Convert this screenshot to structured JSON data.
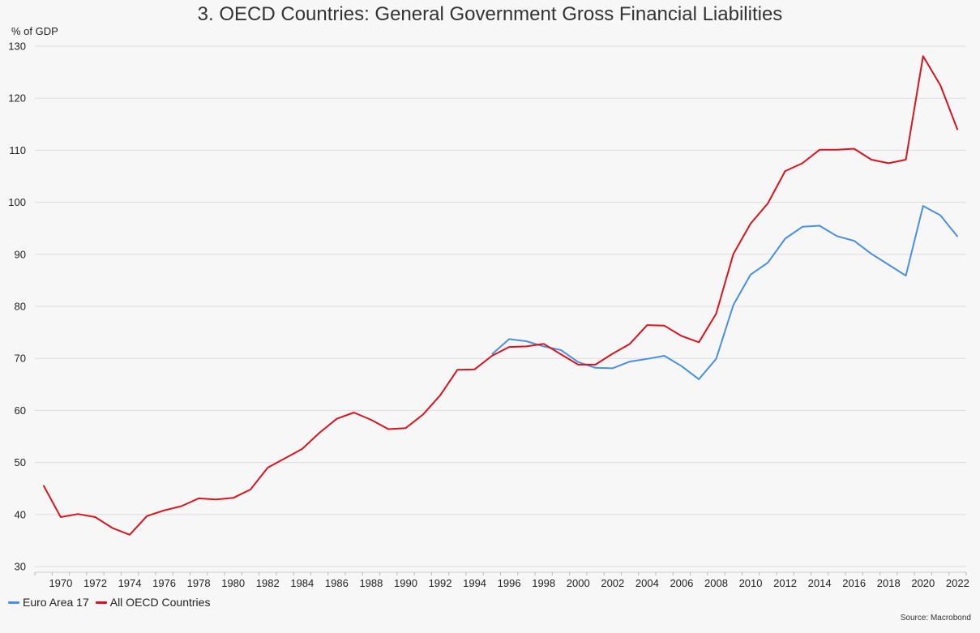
{
  "header": {
    "title": "3. OECD Countries: General Government Gross Financial Liabilities",
    "unit_label": "% of GDP"
  },
  "legend": {
    "items": [
      {
        "label": "Euro Area 17",
        "color": "#4a90e2"
      },
      {
        "label": "All OECD Countries",
        "color": "#d9141e"
      }
    ]
  },
  "footer": {
    "source": "Source: Macrobond"
  },
  "chart_data": {
    "type": "line",
    "title": "3. OECD Countries: General Government Gross Financial Liabilities",
    "ylabel": "% of GDP",
    "xlabel": "",
    "ylim": [
      30,
      130
    ],
    "yticks": [
      30,
      40,
      50,
      60,
      70,
      80,
      90,
      100,
      110,
      120,
      130
    ],
    "xlim": [
      1969,
      2023
    ],
    "xticks": [
      1970,
      1972,
      1974,
      1976,
      1978,
      1980,
      1982,
      1984,
      1986,
      1988,
      1990,
      1992,
      1994,
      1996,
      1998,
      2000,
      2002,
      2004,
      2006,
      2008,
      2010,
      2012,
      2014,
      2016,
      2018,
      2020,
      2022
    ],
    "grid": true,
    "legend_position": "bottom-left",
    "series": [
      {
        "name": "All OECD Countries",
        "color": "#d9141e",
        "points": [
          [
            1969.5,
            45.6
          ],
          [
            1970.5,
            39.5
          ],
          [
            1971.5,
            40.1
          ],
          [
            1972.5,
            39.5
          ],
          [
            1973.5,
            37.4
          ],
          [
            1974.5,
            36.1
          ],
          [
            1975.5,
            39.7
          ],
          [
            1976.5,
            40.8
          ],
          [
            1977.5,
            41.6
          ],
          [
            1978.5,
            43.1
          ],
          [
            1979.5,
            42.9
          ],
          [
            1980.5,
            43.2
          ],
          [
            1981.5,
            44.8
          ],
          [
            1982.5,
            49.0
          ],
          [
            1983.5,
            50.8
          ],
          [
            1984.5,
            52.6
          ],
          [
            1985.5,
            55.7
          ],
          [
            1986.5,
            58.4
          ],
          [
            1987.5,
            59.6
          ],
          [
            1988.5,
            58.2
          ],
          [
            1989.5,
            56.4
          ],
          [
            1990.5,
            56.6
          ],
          [
            1991.5,
            59.2
          ],
          [
            1992.5,
            62.9
          ],
          [
            1993.5,
            67.8
          ],
          [
            1994.5,
            67.9
          ],
          [
            1995.5,
            70.5
          ],
          [
            1996.5,
            72.2
          ],
          [
            1997.5,
            72.3
          ],
          [
            1998.5,
            72.8
          ],
          [
            1999.5,
            70.8
          ],
          [
            2000.5,
            68.8
          ],
          [
            2001.5,
            68.8
          ],
          [
            2002.5,
            70.9
          ],
          [
            2003.5,
            72.8
          ],
          [
            2004.5,
            76.4
          ],
          [
            2005.5,
            76.3
          ],
          [
            2006.5,
            74.3
          ],
          [
            2007.5,
            73.1
          ],
          [
            2008.5,
            78.6
          ],
          [
            2009.5,
            90.1
          ],
          [
            2010.5,
            95.9
          ],
          [
            2011.5,
            99.8
          ],
          [
            2012.5,
            106.0
          ],
          [
            2013.5,
            107.5
          ],
          [
            2014.5,
            110.1
          ],
          [
            2015.5,
            110.1
          ],
          [
            2016.5,
            110.3
          ],
          [
            2017.5,
            108.2
          ],
          [
            2018.5,
            107.5
          ],
          [
            2019.5,
            108.2
          ],
          [
            2020.5,
            128.1
          ],
          [
            2021.5,
            122.5
          ],
          [
            2022.5,
            113.9
          ]
        ]
      },
      {
        "name": "Euro Area 17",
        "color": "#4a90e2",
        "points": [
          [
            1995.5,
            70.8
          ],
          [
            1996.5,
            73.7
          ],
          [
            1997.5,
            73.3
          ],
          [
            1998.5,
            72.3
          ],
          [
            1999.5,
            71.6
          ],
          [
            2000.5,
            69.3
          ],
          [
            2001.5,
            68.2
          ],
          [
            2002.5,
            68.1
          ],
          [
            2003.5,
            69.4
          ],
          [
            2004.5,
            69.9
          ],
          [
            2005.5,
            70.5
          ],
          [
            2006.5,
            68.5
          ],
          [
            2007.5,
            66.0
          ],
          [
            2008.5,
            69.9
          ],
          [
            2009.5,
            80.3
          ],
          [
            2010.5,
            86.1
          ],
          [
            2011.5,
            88.4
          ],
          [
            2012.5,
            93.0
          ],
          [
            2013.5,
            95.3
          ],
          [
            2014.5,
            95.5
          ],
          [
            2015.5,
            93.5
          ],
          [
            2016.5,
            92.6
          ],
          [
            2017.5,
            90.1
          ],
          [
            2018.5,
            88.0
          ],
          [
            2019.5,
            85.9
          ],
          [
            2020.5,
            99.3
          ],
          [
            2021.5,
            97.5
          ],
          [
            2022.5,
            93.4
          ]
        ]
      }
    ]
  }
}
